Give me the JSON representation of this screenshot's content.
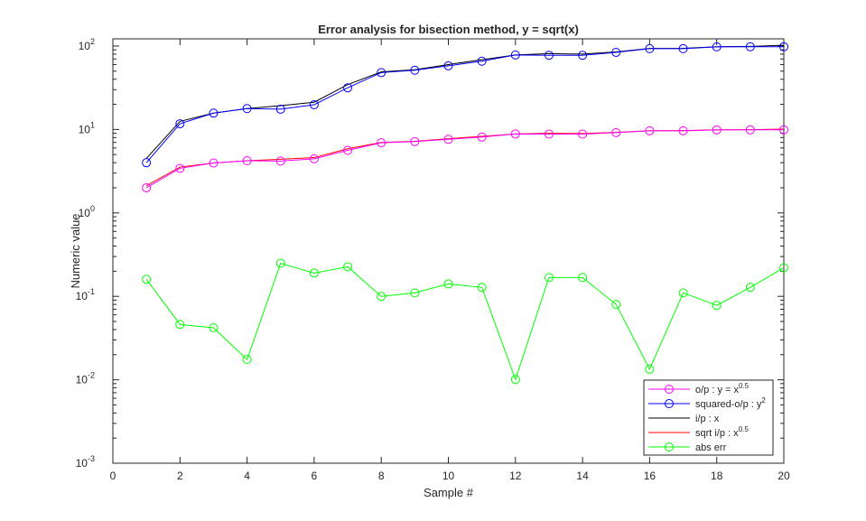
{
  "chart_data": {
    "type": "line",
    "title": "Error analysis for bisection method, y = sqrt(x)",
    "xlabel": "Sample #",
    "ylabel": "Numeric value",
    "xlim": [
      0,
      20
    ],
    "ylim": [
      0.001,
      122
    ],
    "yscale": "log",
    "xticks": [
      "0",
      "2",
      "4",
      "6",
      "8",
      "10",
      "12",
      "14",
      "16",
      "18",
      "20"
    ],
    "yticks": [
      {
        "base": "10",
        "exp": "-3"
      },
      {
        "base": "10",
        "exp": "-2"
      },
      {
        "base": "10",
        "exp": "-1"
      },
      {
        "base": "10",
        "exp": "0"
      },
      {
        "base": "10",
        "exp": "1"
      },
      {
        "base": "10",
        "exp": "2"
      }
    ],
    "grid": false,
    "legend_position": "bottom-right",
    "x": [
      1,
      2,
      3,
      4,
      5,
      6,
      7,
      8,
      9,
      10,
      11,
      12,
      13,
      14,
      15,
      16,
      17,
      18,
      19,
      20
    ],
    "series": [
      {
        "name": "i/p : x",
        "label": "i/p : x",
        "sup": "",
        "color": "#000000",
        "marker": false,
        "values": [
          4.5,
          12.5,
          15.7,
          17.8,
          19.3,
          21.2,
          34.5,
          49,
          52,
          60,
          68.6,
          78.2,
          81,
          80,
          85,
          93.5,
          94,
          98,
          99,
          102
        ]
      },
      {
        "name": "squared-o/p : y^2",
        "label": "squared-o/p  :  y",
        "sup": "2",
        "color": "#0000ff",
        "marker": true,
        "values": [
          4.0,
          11.7,
          15.7,
          17.8,
          17.5,
          19.8,
          31.6,
          48,
          51.3,
          58,
          65.8,
          78.2,
          77.5,
          77.5,
          84,
          93,
          93,
          97.8,
          98,
          98
        ]
      },
      {
        "name": "sqrt i/p : x^0.5",
        "label": "sqrt  i/p  :  x",
        "sup": "0.5",
        "color": "#ff0000",
        "marker": false,
        "values": [
          2.12,
          3.54,
          3.96,
          4.22,
          4.39,
          4.6,
          5.87,
          7.0,
          7.21,
          7.75,
          8.28,
          8.84,
          9.0,
          8.94,
          9.22,
          9.67,
          9.7,
          9.9,
          9.95,
          10.1
        ]
      },
      {
        "name": "o/p : y = x^0.5",
        "label": "o/p  :  y  =  x",
        "sup": "0.5",
        "color": "#ff00ff",
        "marker": true,
        "values": [
          2.0,
          3.42,
          3.96,
          4.22,
          4.18,
          4.45,
          5.62,
          6.93,
          7.16,
          7.62,
          8.11,
          8.84,
          8.8,
          8.8,
          9.17,
          9.64,
          9.64,
          9.89,
          9.9,
          9.9
        ]
      },
      {
        "name": "abs err",
        "label": "abs err",
        "sup": "",
        "color": "#00ff00",
        "marker": true,
        "values": [
          0.16,
          0.046,
          0.042,
          0.0175,
          0.249,
          0.19,
          0.226,
          0.1,
          0.11,
          0.141,
          0.128,
          0.0101,
          0.168,
          0.168,
          0.08,
          0.0134,
          0.11,
          0.078,
          0.128,
          0.22
        ]
      }
    ],
    "legend_order": [
      3,
      1,
      0,
      2,
      4
    ]
  }
}
